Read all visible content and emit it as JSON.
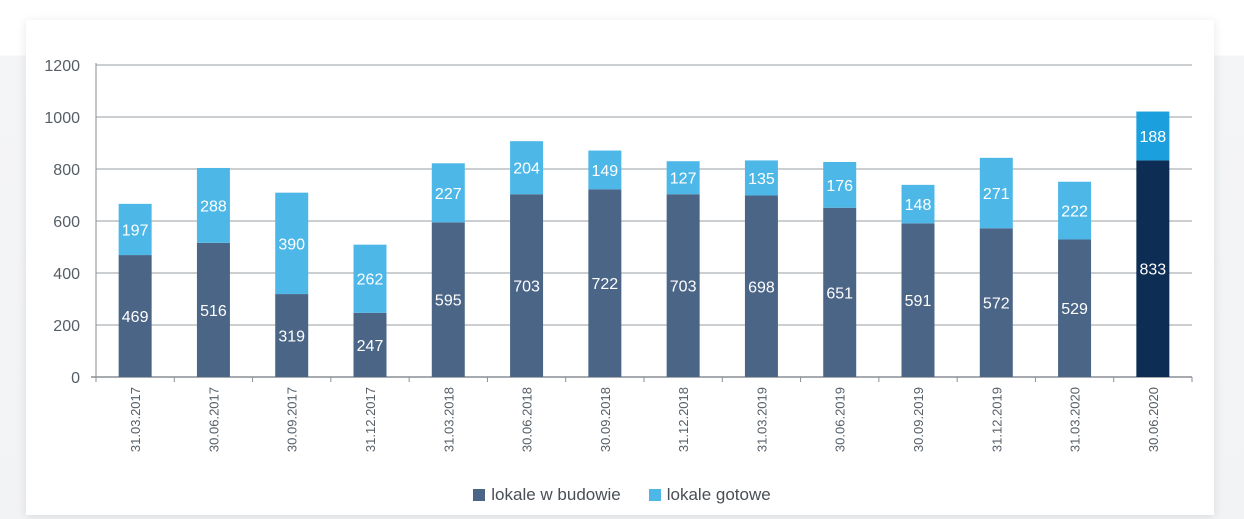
{
  "chart_data": {
    "type": "bar",
    "stacked": true,
    "categories": [
      "31.03.2017",
      "30.06.2017",
      "30.09.2017",
      "31.12.2017",
      "31.03.2018",
      "30.06.2018",
      "30.09.2018",
      "31.12.2018",
      "31.03.2019",
      "30.06.2019",
      "30.09.2019",
      "31.12.2019",
      "31.03.2020",
      "30.06.2020"
    ],
    "series": [
      {
        "name": "lokale w budowie",
        "values": [
          469,
          516,
          319,
          247,
          595,
          703,
          722,
          703,
          698,
          651,
          591,
          572,
          529,
          833
        ],
        "color": "#4b6587"
      },
      {
        "name": "lokale gotowe",
        "values": [
          197,
          288,
          390,
          262,
          227,
          204,
          149,
          127,
          135,
          176,
          148,
          271,
          222,
          188
        ],
        "color": "#4db8e8"
      }
    ],
    "highlight": {
      "index": 13,
      "colors": [
        "#0d2d54",
        "#1ba0dd"
      ]
    },
    "ylim": [
      0,
      1200
    ],
    "yticks": [
      "0",
      "200",
      "400",
      "600",
      "800",
      "1000",
      "1200"
    ],
    "grid": true,
    "legend_position": "bottom-center"
  }
}
